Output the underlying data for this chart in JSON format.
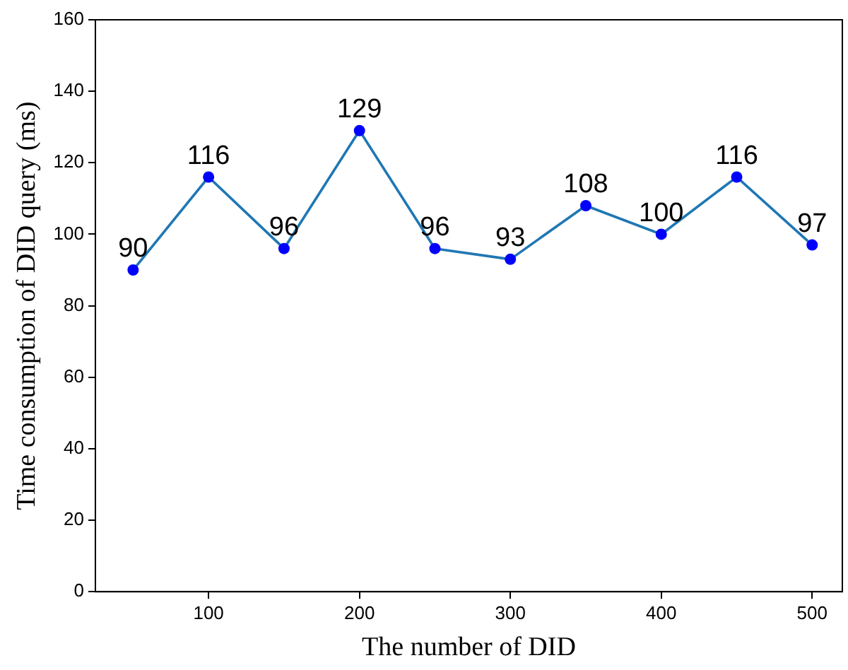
{
  "chart_data": {
    "type": "line",
    "xlabel": "The number of DID",
    "ylabel": "Time consumption of DID query (ms)",
    "x": [
      50,
      100,
      150,
      200,
      250,
      300,
      350,
      400,
      450,
      500
    ],
    "series": [
      {
        "color": "#1f77b4",
        "marker": "none",
        "values": [
          90,
          116,
          96,
          129,
          96,
          93,
          108,
          100,
          116,
          97
        ]
      },
      {
        "type": "scatter",
        "color": "#0000ff",
        "marker": "circle",
        "values": [
          90,
          116,
          96,
          129,
          96,
          93,
          108,
          100,
          116,
          97
        ],
        "value_labels": [
          "90",
          "116",
          "96",
          "129",
          "96",
          "93",
          "108",
          "100",
          "116",
          "97"
        ]
      }
    ],
    "xlim": [
      25,
      520
    ],
    "ylim": [
      0,
      160
    ],
    "xticks": [
      100,
      200,
      300,
      400,
      500
    ],
    "yticks": [
      0,
      20,
      40,
      60,
      80,
      100,
      120,
      140,
      160
    ],
    "grid": false,
    "legend": false
  }
}
